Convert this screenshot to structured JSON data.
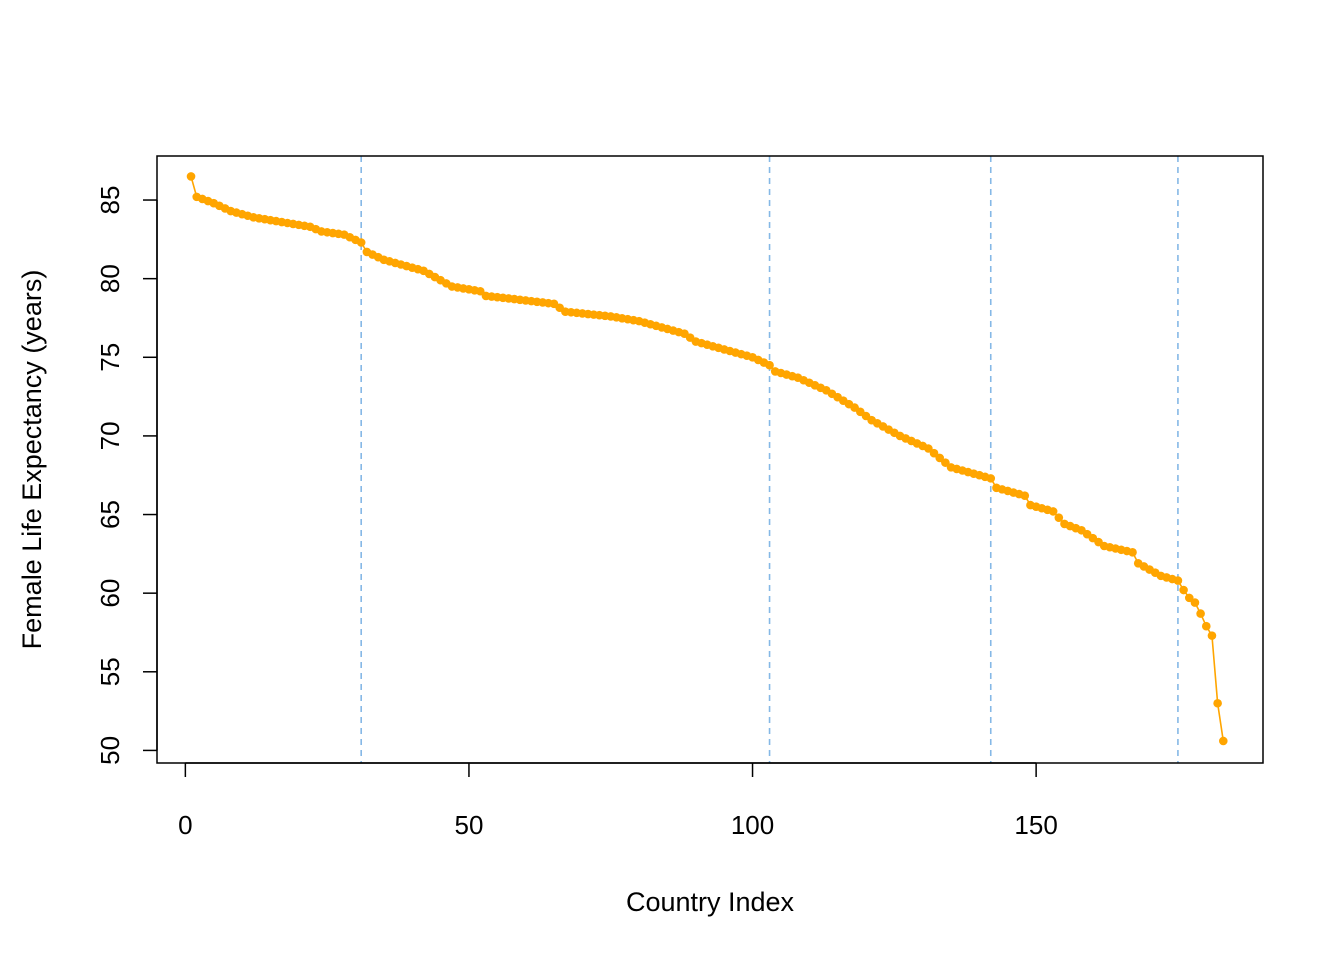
{
  "chart_data": {
    "type": "line",
    "title": "",
    "xlabel": "Country Index",
    "ylabel": "Female Life Expectancy (years)",
    "xlim": [
      -5,
      190
    ],
    "ylim": [
      49.2,
      87.8
    ],
    "x_ticks": [
      0,
      50,
      100,
      150
    ],
    "y_ticks": [
      50,
      55,
      60,
      65,
      70,
      75,
      80,
      85
    ],
    "grid": false,
    "legend": "none",
    "vlines": [
      31,
      103,
      142,
      175
    ],
    "colors": {
      "line": "#FFA500",
      "points": "#FFA500",
      "vlines": "#85B8E6",
      "axes": "#000000"
    },
    "anchors": [
      [
        1,
        86.5
      ],
      [
        2,
        85.2
      ],
      [
        5,
        84.8
      ],
      [
        8,
        84.3
      ],
      [
        12,
        83.9
      ],
      [
        17,
        83.6
      ],
      [
        22,
        83.3
      ],
      [
        24,
        83.0
      ],
      [
        28,
        82.8
      ],
      [
        31,
        82.3
      ],
      [
        32,
        81.7
      ],
      [
        35,
        81.2
      ],
      [
        38,
        80.9
      ],
      [
        42,
        80.5
      ],
      [
        47,
        79.5
      ],
      [
        52,
        79.2
      ],
      [
        53,
        78.9
      ],
      [
        58,
        78.7
      ],
      [
        65,
        78.4
      ],
      [
        67,
        77.9
      ],
      [
        75,
        77.6
      ],
      [
        80,
        77.3
      ],
      [
        83,
        77.0
      ],
      [
        88,
        76.5
      ],
      [
        90,
        76.0
      ],
      [
        95,
        75.5
      ],
      [
        100,
        75.0
      ],
      [
        103,
        74.5
      ],
      [
        104,
        74.1
      ],
      [
        108,
        73.7
      ],
      [
        113,
        72.9
      ],
      [
        118,
        71.8
      ],
      [
        121,
        71.0
      ],
      [
        126,
        70.0
      ],
      [
        131,
        69.2
      ],
      [
        135,
        68.0
      ],
      [
        140,
        67.5
      ],
      [
        142,
        67.3
      ],
      [
        143,
        66.7
      ],
      [
        148,
        66.2
      ],
      [
        149,
        65.6
      ],
      [
        153,
        65.2
      ],
      [
        155,
        64.4
      ],
      [
        158,
        64.0
      ],
      [
        162,
        63.0
      ],
      [
        167,
        62.6
      ],
      [
        168,
        61.9
      ],
      [
        172,
        61.1
      ],
      [
        175,
        60.8
      ],
      [
        176,
        60.2
      ],
      [
        177,
        59.7
      ],
      [
        178,
        59.4
      ],
      [
        179,
        58.7
      ],
      [
        180,
        57.9
      ],
      [
        181,
        57.3
      ],
      [
        182,
        53.0
      ],
      [
        183,
        50.6
      ]
    ]
  }
}
